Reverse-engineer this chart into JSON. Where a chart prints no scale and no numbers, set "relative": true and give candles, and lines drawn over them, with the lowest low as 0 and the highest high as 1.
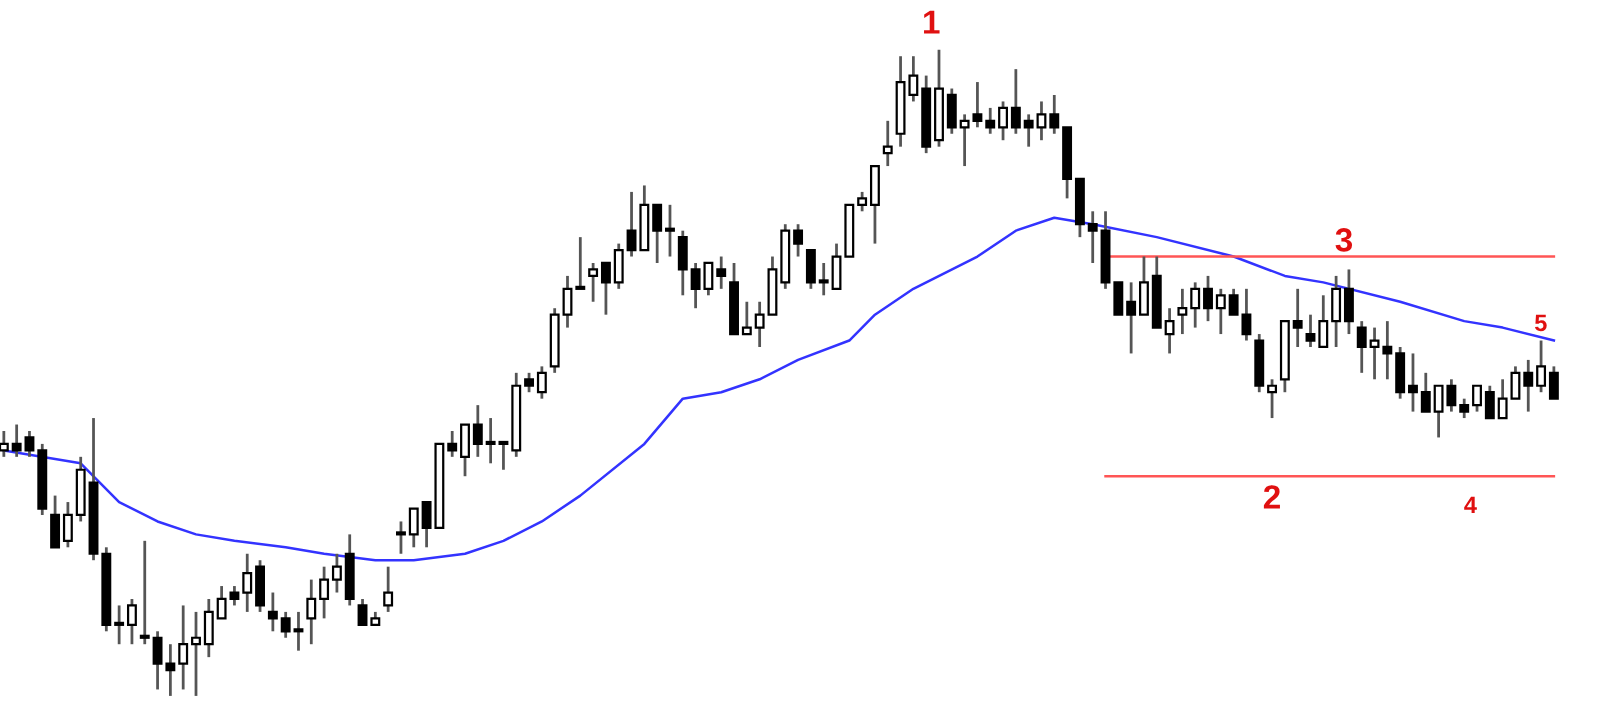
{
  "chart_data": {
    "type": "candlestick",
    "relative": true,
    "categories": [
      null,
      null,
      null,
      null,
      null,
      null,
      null,
      null,
      null,
      null,
      null,
      null,
      null,
      null,
      null,
      null,
      null,
      null,
      null,
      null,
      null,
      null,
      null,
      null,
      null,
      null,
      null,
      null,
      null,
      null,
      null,
      null,
      null,
      null,
      null,
      null,
      null,
      null,
      null,
      null,
      null,
      null,
      null,
      null,
      null,
      null,
      null,
      null,
      null,
      null,
      null,
      null,
      null,
      null,
      null,
      null,
      null,
      null,
      null,
      null,
      null,
      null,
      null,
      null,
      null,
      null,
      null,
      null,
      null,
      null,
      null,
      null,
      null,
      null,
      null,
      null,
      null,
      null,
      null,
      null,
      null,
      null,
      null,
      null,
      null,
      null,
      null,
      null,
      null,
      null,
      null,
      null,
      null,
      null,
      null,
      null,
      null,
      null,
      null,
      null,
      null,
      null,
      null,
      null,
      null,
      null,
      null,
      null,
      null,
      null,
      null,
      null,
      null,
      null,
      null,
      null,
      null,
      null,
      null,
      null,
      null,
      null
    ],
    "ohlc": [
      [
        0.38,
        0.41,
        0.37,
        0.39
      ],
      [
        0.39,
        0.42,
        0.37,
        0.38
      ],
      [
        0.4,
        0.41,
        0.37,
        0.38
      ],
      [
        0.38,
        0.39,
        0.28,
        0.29
      ],
      [
        0.28,
        0.31,
        0.23,
        0.23
      ],
      [
        0.24,
        0.3,
        0.23,
        0.28
      ],
      [
        0.28,
        0.37,
        0.27,
        0.35
      ],
      [
        0.33,
        0.43,
        0.21,
        0.22
      ],
      [
        0.22,
        0.23,
        0.1,
        0.11
      ],
      [
        0.11,
        0.14,
        0.08,
        0.11
      ],
      [
        0.11,
        0.15,
        0.08,
        0.14
      ],
      [
        0.09,
        0.24,
        0.08,
        0.09
      ],
      [
        0.09,
        0.1,
        0.01,
        0.05
      ],
      [
        0.05,
        0.08,
        0.0,
        0.04
      ],
      [
        0.05,
        0.14,
        0.01,
        0.08
      ],
      [
        0.08,
        0.13,
        0.0,
        0.09
      ],
      [
        0.08,
        0.15,
        0.06,
        0.13
      ],
      [
        0.12,
        0.17,
        0.12,
        0.15
      ],
      [
        0.16,
        0.17,
        0.14,
        0.15
      ],
      [
        0.16,
        0.22,
        0.13,
        0.19
      ],
      [
        0.2,
        0.21,
        0.13,
        0.14
      ],
      [
        0.13,
        0.16,
        0.1,
        0.12
      ],
      [
        0.12,
        0.13,
        0.09,
        0.1
      ],
      [
        0.1,
        0.13,
        0.07,
        0.1
      ],
      [
        0.12,
        0.18,
        0.08,
        0.15
      ],
      [
        0.15,
        0.2,
        0.12,
        0.18
      ],
      [
        0.18,
        0.22,
        0.16,
        0.2
      ],
      [
        0.22,
        0.25,
        0.14,
        0.15
      ],
      [
        0.14,
        0.15,
        0.11,
        0.11
      ],
      [
        0.11,
        0.13,
        0.11,
        0.12
      ],
      [
        0.14,
        0.2,
        0.13,
        0.16
      ],
      [
        0.25,
        0.27,
        0.22,
        0.25
      ],
      [
        0.25,
        0.29,
        0.23,
        0.29
      ],
      [
        0.3,
        0.3,
        0.23,
        0.26
      ],
      [
        0.26,
        0.39,
        0.26,
        0.39
      ],
      [
        0.39,
        0.41,
        0.37,
        0.38
      ],
      [
        0.37,
        0.42,
        0.34,
        0.42
      ],
      [
        0.42,
        0.45,
        0.37,
        0.39
      ],
      [
        0.39,
        0.43,
        0.36,
        0.39
      ],
      [
        0.39,
        0.39,
        0.35,
        0.39
      ],
      [
        0.38,
        0.5,
        0.37,
        0.48
      ],
      [
        0.49,
        0.5,
        0.47,
        0.48
      ],
      [
        0.47,
        0.51,
        0.46,
        0.5
      ],
      [
        0.51,
        0.6,
        0.5,
        0.59
      ],
      [
        0.59,
        0.65,
        0.57,
        0.63
      ],
      [
        0.63,
        0.71,
        0.63,
        0.63
      ],
      [
        0.65,
        0.67,
        0.61,
        0.66
      ],
      [
        0.67,
        0.67,
        0.59,
        0.64
      ],
      [
        0.64,
        0.7,
        0.63,
        0.69
      ],
      [
        0.72,
        0.78,
        0.68,
        0.69
      ],
      [
        0.69,
        0.79,
        0.69,
        0.76
      ],
      [
        0.76,
        0.76,
        0.67,
        0.72
      ],
      [
        0.72,
        0.76,
        0.68,
        0.72
      ],
      [
        0.71,
        0.72,
        0.62,
        0.66
      ],
      [
        0.66,
        0.67,
        0.6,
        0.63
      ],
      [
        0.63,
        0.67,
        0.62,
        0.67
      ],
      [
        0.66,
        0.68,
        0.63,
        0.65
      ],
      [
        0.64,
        0.67,
        0.56,
        0.56
      ],
      [
        0.56,
        0.61,
        0.56,
        0.57
      ],
      [
        0.57,
        0.61,
        0.54,
        0.59
      ],
      [
        0.59,
        0.68,
        0.59,
        0.66
      ],
      [
        0.64,
        0.73,
        0.63,
        0.72
      ],
      [
        0.72,
        0.73,
        0.68,
        0.7
      ],
      [
        0.69,
        0.69,
        0.63,
        0.64
      ],
      [
        0.64,
        0.67,
        0.62,
        0.64
      ],
      [
        0.63,
        0.7,
        0.63,
        0.68
      ],
      [
        0.68,
        0.76,
        0.68,
        0.76
      ],
      [
        0.76,
        0.78,
        0.75,
        0.77
      ],
      [
        0.76,
        0.82,
        0.7,
        0.82
      ],
      [
        0.84,
        0.89,
        0.82,
        0.85
      ],
      [
        0.87,
        0.99,
        0.85,
        0.95
      ],
      [
        0.93,
        0.99,
        0.92,
        0.96
      ],
      [
        0.94,
        0.96,
        0.84,
        0.85
      ],
      [
        0.86,
        1.0,
        0.85,
        0.94
      ],
      [
        0.93,
        0.94,
        0.87,
        0.88
      ],
      [
        0.88,
        0.9,
        0.82,
        0.89
      ],
      [
        0.9,
        0.95,
        0.88,
        0.89
      ],
      [
        0.89,
        0.91,
        0.87,
        0.88
      ],
      [
        0.88,
        0.92,
        0.86,
        0.91
      ],
      [
        0.91,
        0.97,
        0.87,
        0.88
      ],
      [
        0.89,
        0.9,
        0.85,
        0.88
      ],
      [
        0.88,
        0.92,
        0.86,
        0.9
      ],
      [
        0.9,
        0.93,
        0.87,
        0.88
      ],
      [
        0.88,
        0.88,
        0.77,
        0.8
      ],
      [
        0.8,
        0.8,
        0.71,
        0.73
      ],
      [
        0.73,
        0.75,
        0.67,
        0.72
      ],
      [
        0.72,
        0.75,
        0.63,
        0.64
      ],
      [
        0.64,
        0.64,
        0.59,
        0.59
      ],
      [
        0.61,
        0.64,
        0.53,
        0.59
      ],
      [
        0.59,
        0.68,
        0.59,
        0.64
      ],
      [
        0.65,
        0.68,
        0.57,
        0.57
      ],
      [
        0.56,
        0.6,
        0.53,
        0.58
      ],
      [
        0.59,
        0.63,
        0.56,
        0.6
      ],
      [
        0.6,
        0.64,
        0.57,
        0.63
      ],
      [
        0.63,
        0.65,
        0.58,
        0.6
      ],
      [
        0.6,
        0.63,
        0.56,
        0.62
      ],
      [
        0.62,
        0.63,
        0.59,
        0.59
      ],
      [
        0.59,
        0.63,
        0.55,
        0.56
      ],
      [
        0.55,
        0.56,
        0.47,
        0.48
      ],
      [
        0.47,
        0.49,
        0.43,
        0.48
      ],
      [
        0.49,
        0.58,
        0.47,
        0.58
      ],
      [
        0.58,
        0.63,
        0.54,
        0.57
      ],
      [
        0.56,
        0.59,
        0.54,
        0.55
      ],
      [
        0.54,
        0.62,
        0.54,
        0.58
      ],
      [
        0.58,
        0.65,
        0.54,
        0.63
      ],
      [
        0.63,
        0.66,
        0.56,
        0.58
      ],
      [
        0.57,
        0.58,
        0.5,
        0.54
      ],
      [
        0.54,
        0.57,
        0.49,
        0.55
      ],
      [
        0.54,
        0.58,
        0.49,
        0.53
      ],
      [
        0.53,
        0.54,
        0.46,
        0.47
      ],
      [
        0.48,
        0.53,
        0.44,
        0.47
      ],
      [
        0.47,
        0.5,
        0.44,
        0.44
      ],
      [
        0.44,
        0.48,
        0.4,
        0.48
      ],
      [
        0.48,
        0.49,
        0.44,
        0.45
      ],
      [
        0.45,
        0.46,
        0.43,
        0.44
      ],
      [
        0.45,
        0.48,
        0.44,
        0.48
      ],
      [
        0.47,
        0.48,
        0.43,
        0.43
      ],
      [
        0.43,
        0.49,
        0.43,
        0.46
      ],
      [
        0.46,
        0.51,
        0.46,
        0.5
      ],
      [
        0.5,
        0.52,
        0.44,
        0.48
      ],
      [
        0.48,
        0.55,
        0.47,
        0.51
      ],
      [
        0.5,
        0.51,
        0.46,
        0.46
      ]
    ],
    "series": [
      {
        "type": "line",
        "color": "#3333ff",
        "values": [
          0.38,
          null,
          null,
          null,
          null,
          null,
          0.36,
          null,
          null,
          0.3,
          null,
          null,
          0.27,
          null,
          null,
          0.25,
          null,
          null,
          0.24,
          null,
          null,
          null,
          0.23,
          null,
          null,
          0.22,
          null,
          null,
          null,
          0.21,
          null,
          null,
          0.21,
          null,
          null,
          null,
          0.22,
          null,
          null,
          0.24,
          null,
          null,
          0.27,
          null,
          null,
          0.31,
          null,
          null,
          null,
          null,
          0.39,
          null,
          null,
          0.46,
          null,
          null,
          0.47,
          null,
          null,
          0.49,
          null,
          null,
          0.52,
          null,
          null,
          null,
          0.55,
          null,
          0.59,
          null,
          null,
          0.63,
          null,
          null,
          null,
          null,
          0.68,
          null,
          null,
          0.72,
          null,
          null,
          0.74,
          null,
          null,
          0.73,
          null,
          null,
          null,
          null,
          0.71,
          null,
          null,
          null,
          null,
          null,
          0.68,
          null,
          null,
          null,
          0.65,
          null,
          null,
          0.64,
          null,
          null,
          null,
          null,
          null,
          0.61,
          null,
          null,
          null,
          null,
          0.58,
          null,
          null,
          0.57,
          null,
          null,
          null,
          0.55
        ]
      },
      {
        "type": "line",
        "color": "#ff5555",
        "values": [
          null,
          null,
          null,
          null,
          null,
          null,
          null,
          null,
          null,
          null,
          null,
          null,
          null,
          null,
          null,
          null,
          null,
          null,
          null,
          null,
          null,
          null,
          null,
          null,
          null,
          null,
          null,
          null,
          null,
          null,
          null,
          null,
          null,
          null,
          null,
          null,
          null,
          null,
          null,
          null,
          null,
          null,
          null,
          null,
          null,
          null,
          null,
          null,
          null,
          null,
          null,
          null,
          null,
          null,
          null,
          null,
          null,
          null,
          null,
          null,
          null,
          null,
          null,
          null,
          null,
          null,
          null,
          null,
          null,
          null,
          null,
          null,
          null,
          null,
          null,
          null,
          null,
          null,
          null,
          null,
          null,
          null,
          null,
          null,
          null,
          null,
          0.68,
          null,
          null,
          null,
          null,
          null,
          null,
          null,
          null,
          null,
          null,
          null,
          null,
          null,
          null,
          null,
          null,
          null,
          null,
          null,
          null,
          null,
          null,
          null,
          null,
          null,
          null,
          null,
          null,
          null,
          null,
          null,
          null,
          null,
          null,
          0.68
        ]
      },
      {
        "type": "line",
        "color": "#ff5555",
        "values": [
          null,
          null,
          null,
          null,
          null,
          null,
          null,
          null,
          null,
          null,
          null,
          null,
          null,
          null,
          null,
          null,
          null,
          null,
          null,
          null,
          null,
          null,
          null,
          null,
          null,
          null,
          null,
          null,
          null,
          null,
          null,
          null,
          null,
          null,
          null,
          null,
          null,
          null,
          null,
          null,
          null,
          null,
          null,
          null,
          null,
          null,
          null,
          null,
          null,
          null,
          null,
          null,
          null,
          null,
          null,
          null,
          null,
          null,
          null,
          null,
          null,
          null,
          null,
          null,
          null,
          null,
          null,
          null,
          null,
          null,
          null,
          null,
          null,
          null,
          null,
          null,
          null,
          null,
          null,
          null,
          null,
          null,
          null,
          null,
          null,
          null,
          0.34,
          null,
          null,
          null,
          null,
          null,
          null,
          null,
          null,
          null,
          null,
          null,
          null,
          null,
          null,
          null,
          null,
          null,
          null,
          null,
          null,
          null,
          null,
          null,
          null,
          null,
          null,
          null,
          null,
          null,
          null,
          null,
          null,
          null,
          null,
          0.34
        ]
      }
    ],
    "annotations": [
      "1",
      "2",
      "3",
      "4",
      "5"
    ]
  }
}
